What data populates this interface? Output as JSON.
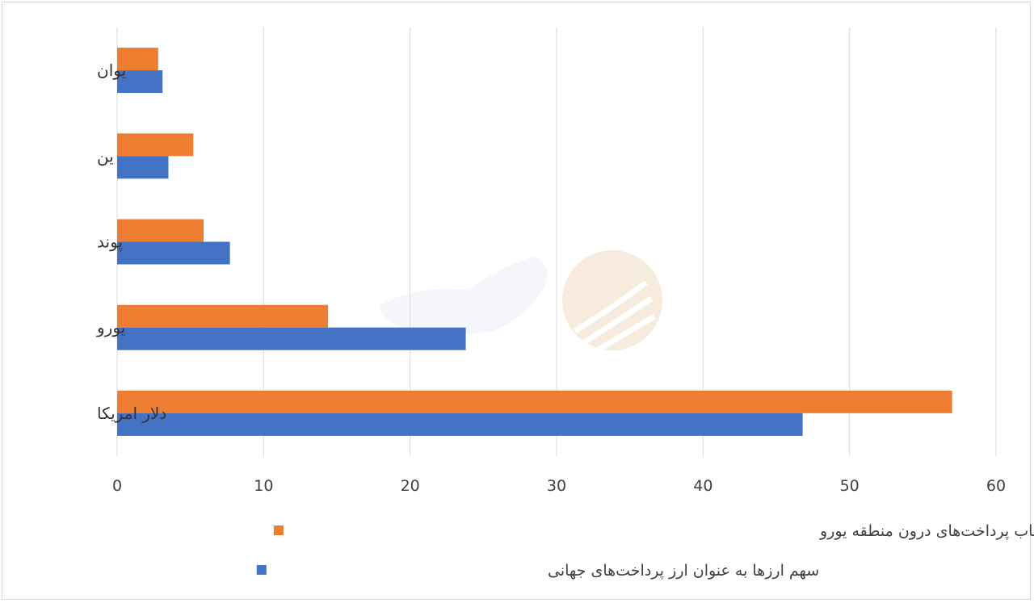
{
  "chart_data": {
    "type": "bar",
    "orientation": "horizontal",
    "categories": [
      "دلار امریکا",
      "یورو",
      "پوند",
      "ین",
      "یوان"
    ],
    "series": [
      {
        "name": "سهم ارزها در پرداخت‌های بین‌المللی - بدون احتساب پرداخت‌های درون منطقه یورو",
        "color": "#ED7D31",
        "values": [
          57.0,
          14.4,
          5.9,
          5.2,
          2.8
        ]
      },
      {
        "name": "سهم ارزها به عنوان ارز پرداخت‌های جهانی",
        "color": "#4472C4",
        "values": [
          46.8,
          23.8,
          7.7,
          3.5,
          3.1
        ]
      }
    ],
    "xlim": [
      0,
      60
    ],
    "xticks": [
      0,
      10,
      20,
      30,
      40,
      50,
      60
    ],
    "title": "",
    "xlabel": "",
    "ylabel": "",
    "grid": "vertical",
    "legend_position": "bottom"
  }
}
